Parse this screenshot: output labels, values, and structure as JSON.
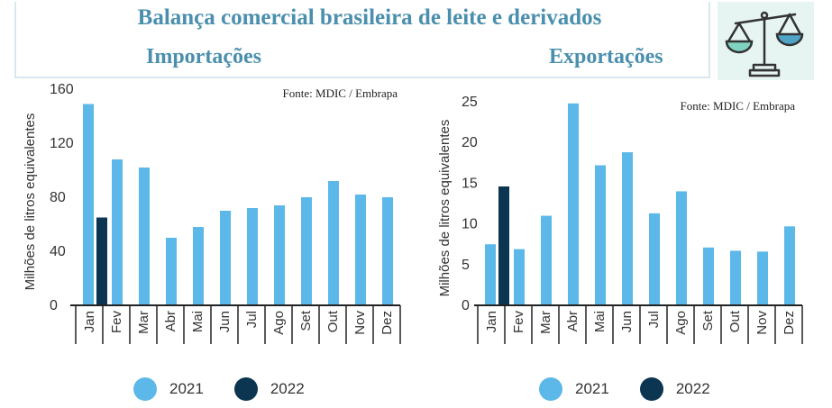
{
  "title": "Balança comercial brasileira de leite e derivados",
  "colors": {
    "s2021": "#5cb8e8",
    "s2022": "#0b3550",
    "title": "#4a8fad",
    "axis": "#222222"
  },
  "icon": "balance-scale-icon",
  "chart_data": [
    {
      "type": "bar",
      "title": "Importações",
      "source": "Fonte: MDIC / Embrapa",
      "ylabel": "Milhões de litros equivalentes",
      "ylim": [
        0,
        160
      ],
      "yticks": [
        0,
        40,
        80,
        120,
        160
      ],
      "categories": [
        "Jan",
        "Fev",
        "Mar",
        "Abr",
        "Mai",
        "Jun",
        "Jul",
        "Ago",
        "Set",
        "Out",
        "Nov",
        "Dez"
      ],
      "series": [
        {
          "name": "2021",
          "values": [
            149,
            108,
            102,
            50,
            58,
            70,
            72,
            74,
            80,
            92,
            82,
            80
          ]
        },
        {
          "name": "2022",
          "values": [
            65,
            null,
            null,
            null,
            null,
            null,
            null,
            null,
            null,
            null,
            null,
            null
          ]
        }
      ],
      "legend": "bottom"
    },
    {
      "type": "bar",
      "title": "Exportações",
      "source": "Fonte: MDIC / Embrapa",
      "ylabel": "Milhões de litros equivalentes",
      "ylim": [
        0,
        25
      ],
      "yticks": [
        0,
        5,
        10,
        15,
        20,
        25
      ],
      "categories": [
        "Jan",
        "Fev",
        "Mar",
        "Abr",
        "Mai",
        "Jun",
        "Jul",
        "Ago",
        "Set",
        "Out",
        "Nov",
        "Dez"
      ],
      "series": [
        {
          "name": "2021",
          "values": [
            7.5,
            6.9,
            11,
            24.8,
            17.2,
            18.8,
            11.3,
            14,
            7.1,
            6.7,
            6.6,
            9.7
          ]
        },
        {
          "name": "2022",
          "values": [
            14.6,
            null,
            null,
            null,
            null,
            null,
            null,
            null,
            null,
            null,
            null,
            null
          ]
        }
      ],
      "legend": "bottom"
    }
  ]
}
